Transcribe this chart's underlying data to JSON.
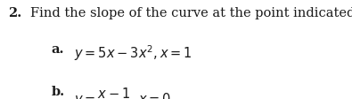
{
  "background_color": "#ffffff",
  "text_color": "#1a1a1a",
  "title_number": "2.",
  "title_text": "Find the slope of the curve at the point indicated.",
  "part_a_label": "a.",
  "part_b_label": "b.",
  "font_size_main": 10.5,
  "font_size_eq": 10.5
}
